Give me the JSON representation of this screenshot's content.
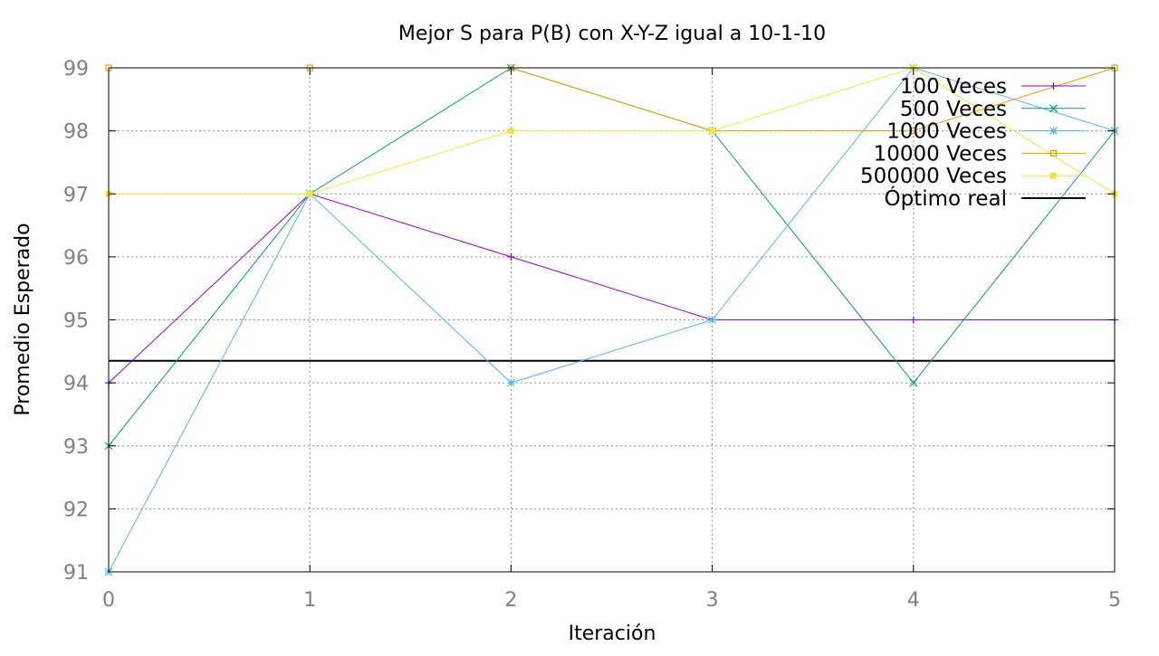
{
  "chart_data": {
    "type": "line",
    "title": "Mejor S para P(B) con X-Y-Z igual a 10-1-10",
    "xlabel": "Iteración",
    "ylabel": "Promedio Esperado",
    "x": [
      0,
      1,
      2,
      3,
      4,
      5
    ],
    "xlim": [
      0,
      5
    ],
    "ylim": [
      91,
      99
    ],
    "xticks": [
      0,
      1,
      2,
      3,
      4,
      5
    ],
    "yticks": [
      91,
      92,
      93,
      94,
      95,
      96,
      97,
      98,
      99
    ],
    "grid": true,
    "legend_position": "top-right",
    "series": [
      {
        "name": "100 Veces",
        "values": [
          94,
          97,
          96,
          95,
          95,
          95
        ],
        "color": "#9400d3",
        "marker": "plus"
      },
      {
        "name": "500 Veces",
        "values": [
          93,
          97,
          99,
          98,
          94,
          98
        ],
        "color": "#009e73",
        "marker": "cross"
      },
      {
        "name": "1000 Veces",
        "values": [
          91,
          97,
          94,
          95,
          99,
          98
        ],
        "color": "#56b4e9",
        "marker": "star"
      },
      {
        "name": "10000 Veces",
        "values": [
          99,
          99,
          99,
          98,
          98,
          99
        ],
        "color": "#e69f00",
        "marker": "open-square"
      },
      {
        "name": "500000 Veces",
        "values": [
          97,
          97,
          98,
          98,
          99,
          97
        ],
        "color": "#f0e442",
        "marker": "filled-square"
      }
    ],
    "reference_line": {
      "name": "Óptimo real",
      "value": 94.35,
      "color": "#000000"
    }
  }
}
